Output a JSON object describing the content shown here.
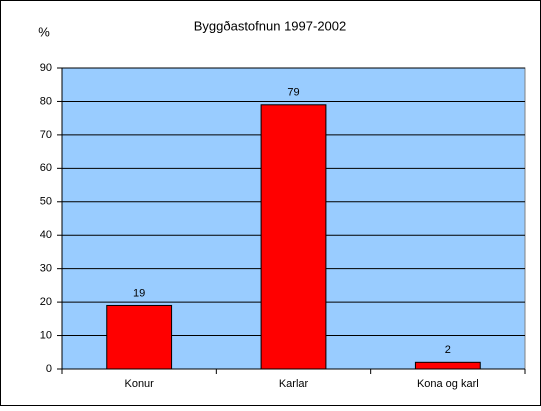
{
  "chart_data": {
    "type": "bar",
    "title": "Byggðastofnun 1997-2002",
    "y_label": "%",
    "categories": [
      "Konur",
      "Karlar",
      "Kona og karl"
    ],
    "values": [
      19,
      79,
      2
    ],
    "color": "#ff0000",
    "plot_background": "#99ccff",
    "ylim": [
      0,
      90
    ],
    "yticks": [
      0,
      10,
      20,
      30,
      40,
      50,
      60,
      70,
      80,
      90
    ],
    "grid": true,
    "data_labels": true
  }
}
